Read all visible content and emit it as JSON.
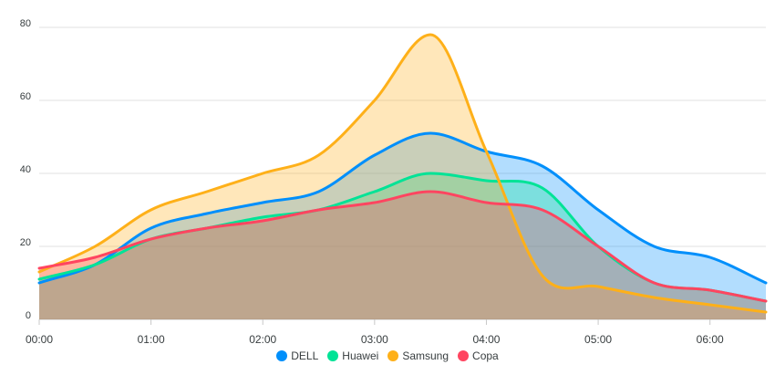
{
  "chart_data": {
    "type": "area",
    "smooth": true,
    "x": [
      "00:00",
      "00:30",
      "01:00",
      "01:30",
      "02:00",
      "02:30",
      "03:00",
      "03:30",
      "04:00",
      "04:30",
      "05:00",
      "05:30",
      "06:00",
      "06:30"
    ],
    "x_tick_labels": [
      "00:00",
      "01:00",
      "02:00",
      "03:00",
      "04:00",
      "05:00",
      "06:00"
    ],
    "ylim": [
      0,
      80
    ],
    "y_ticks": [
      0,
      20,
      40,
      60,
      80
    ],
    "grid": "horizontal",
    "legend": "bottom-center",
    "series": [
      {
        "name": "DELL",
        "color": "#008FFB",
        "values": [
          10,
          15,
          25,
          29,
          32,
          35,
          45,
          51,
          46,
          42,
          30,
          20,
          17,
          10
        ]
      },
      {
        "name": "Huawei",
        "color": "#00E396",
        "values": [
          11,
          15,
          22,
          25,
          28,
          30,
          35,
          40,
          38,
          36,
          20,
          10,
          8,
          5
        ]
      },
      {
        "name": "Samsung",
        "color": "#FEB019",
        "values": [
          13,
          20,
          30,
          35,
          40,
          45,
          60,
          78,
          46,
          12,
          9,
          6,
          4,
          2
        ]
      },
      {
        "name": "Copa",
        "color": "#FF4560",
        "values": [
          14,
          17,
          22,
          25,
          27,
          30,
          32,
          35,
          32,
          30,
          20,
          10,
          8,
          5
        ]
      }
    ]
  }
}
